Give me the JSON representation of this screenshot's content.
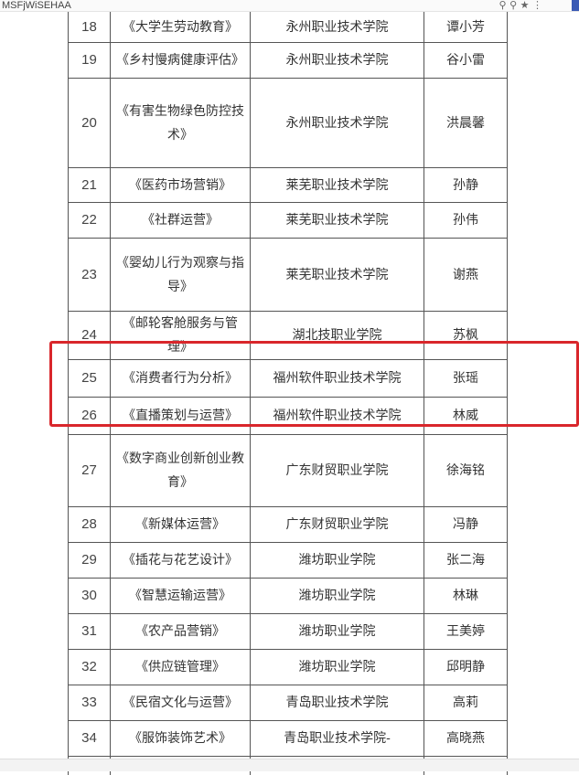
{
  "browser": {
    "url_fragment": "MSFjWiSEHAA"
  },
  "rows": [
    {
      "no": "18",
      "course": "《大学生劳动教育》",
      "school": "永州职业技术学院",
      "person": "谭小芳"
    },
    {
      "no": "19",
      "course": "《乡村慢病健康评估》",
      "school": "永州职业技术学院",
      "person": "谷小雷"
    },
    {
      "no": "20",
      "course": "《有害生物绿色防控技术》",
      "school": "永州职业技术学院",
      "person": "洪晨馨"
    },
    {
      "no": "21",
      "course": "《医药市场营销》",
      "school": "莱芜职业技术学院",
      "person": "孙静"
    },
    {
      "no": "22",
      "course": "《社群运营》",
      "school": "莱芜职业技术学院",
      "person": "孙伟"
    },
    {
      "no": "23",
      "course": "《婴幼儿行为观察与指导》",
      "school": "莱芜职业技术学院",
      "person": "谢燕"
    },
    {
      "no": "24",
      "course": "《邮轮客舱服务与管理》",
      "school": "湖北技职业学院",
      "person": "苏枫"
    },
    {
      "no": "25",
      "course": "《消费者行为分析》",
      "school": "福州软件职业技术学院",
      "person": "张瑶"
    },
    {
      "no": "26",
      "course": "《直播策划与运营》",
      "school": "福州软件职业技术学院",
      "person": "林威"
    },
    {
      "no": "27",
      "course": "《数字商业创新创业教育》",
      "school": "广东财贸职业学院",
      "person": "徐海铭"
    },
    {
      "no": "28",
      "course": "《新媒体运营》",
      "school": "广东财贸职业学院",
      "person": "冯静"
    },
    {
      "no": "29",
      "course": "《插花与花艺设计》",
      "school": "潍坊职业学院",
      "person": "张二海"
    },
    {
      "no": "30",
      "course": "《智慧运输运营》",
      "school": "潍坊职业学院",
      "person": "林琳"
    },
    {
      "no": "31",
      "course": "《农产品营销》",
      "school": "潍坊职业学院",
      "person": "王美婷"
    },
    {
      "no": "32",
      "course": "《供应链管理》",
      "school": "潍坊职业学院",
      "person": "邱明静"
    },
    {
      "no": "33",
      "course": "《民宿文化与运营》",
      "school": "青岛职业技术学院",
      "person": "高莉"
    },
    {
      "no": "34",
      "course": "《服饰装饰艺术》",
      "school": "青岛职业技术学院-",
      "person": "高晓燕"
    }
  ],
  "highlight_color": "#d9262b"
}
